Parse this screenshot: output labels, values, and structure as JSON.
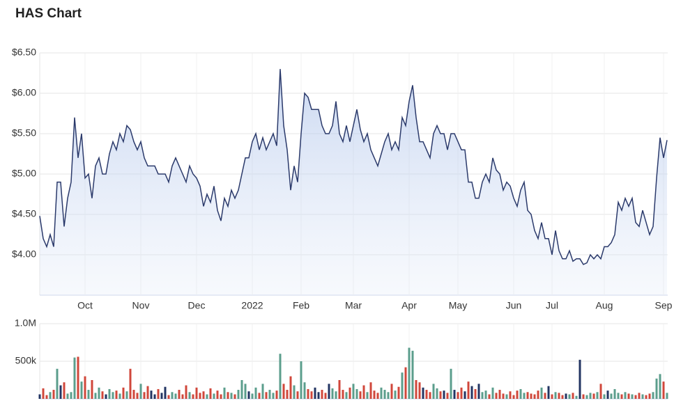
{
  "chart_data": {
    "type": "stock",
    "title": "HAS Chart",
    "price": {
      "color": "#2b3a6b",
      "values": [
        4.48,
        4.2,
        4.1,
        4.25,
        4.1,
        4.9,
        4.9,
        4.35,
        4.7,
        4.9,
        5.7,
        5.2,
        5.5,
        4.95,
        5.0,
        4.7,
        5.1,
        5.2,
        5.0,
        5.0,
        5.25,
        5.4,
        5.3,
        5.5,
        5.4,
        5.6,
        5.55,
        5.4,
        5.3,
        5.4,
        5.2,
        5.1,
        5.1,
        5.1,
        5.0,
        5.0,
        5.0,
        4.9,
        5.1,
        5.2,
        5.1,
        5.0,
        4.9,
        5.1,
        5.0,
        4.95,
        4.85,
        4.6,
        4.75,
        4.65,
        4.85,
        4.55,
        4.42,
        4.7,
        4.6,
        4.8,
        4.7,
        4.8,
        5.0,
        5.2,
        5.2,
        5.4,
        5.5,
        5.3,
        5.45,
        5.3,
        5.4,
        5.5,
        5.35,
        6.3,
        5.6,
        5.3,
        4.8,
        5.1,
        4.9,
        5.5,
        6.0,
        5.95,
        5.8,
        5.8,
        5.8,
        5.6,
        5.5,
        5.5,
        5.6,
        5.9,
        5.5,
        5.4,
        5.6,
        5.4,
        5.6,
        5.8,
        5.55,
        5.4,
        5.5,
        5.3,
        5.2,
        5.1,
        5.25,
        5.4,
        5.5,
        5.3,
        5.4,
        5.3,
        5.7,
        5.6,
        5.9,
        6.1,
        5.7,
        5.4,
        5.4,
        5.3,
        5.2,
        5.5,
        5.6,
        5.5,
        5.5,
        5.3,
        5.5,
        5.5,
        5.4,
        5.3,
        5.3,
        4.9,
        4.9,
        4.7,
        4.7,
        4.9,
        5.0,
        4.9,
        5.2,
        5.05,
        5.0,
        4.8,
        4.9,
        4.85,
        4.7,
        4.6,
        4.8,
        4.9,
        4.55,
        4.5,
        4.3,
        4.2,
        4.4,
        4.2,
        4.2,
        4.0,
        4.3,
        4.05,
        3.95,
        3.95,
        4.05,
        3.92,
        3.95,
        3.95,
        3.88,
        3.9,
        4.0,
        3.95,
        4.0,
        3.95,
        4.1,
        4.1,
        4.15,
        4.25,
        4.65,
        4.55,
        4.7,
        4.6,
        4.7,
        4.4,
        4.35,
        4.55,
        4.4,
        4.25,
        4.35,
        4.95,
        5.45,
        5.2,
        5.42
      ],
      "ylim": [
        3.5,
        6.5
      ],
      "yticks": [
        {
          "value": 4.0,
          "label": "$4.00"
        },
        {
          "value": 4.5,
          "label": "$4.50"
        },
        {
          "value": 5.0,
          "label": "$5.00"
        },
        {
          "value": 5.5,
          "label": "$5.50"
        },
        {
          "value": 6.0,
          "label": "$6.00"
        },
        {
          "value": 6.5,
          "label": "$6.50"
        }
      ]
    },
    "volume": {
      "up_color": "#5b9e8c",
      "down_color": "#d0473b",
      "flat_color": "#233563",
      "values": [
        60000,
        140000,
        50000,
        90000,
        120000,
        400000,
        180000,
        220000,
        70000,
        90000,
        550000,
        560000,
        230000,
        300000,
        120000,
        250000,
        80000,
        150000,
        100000,
        60000,
        130000,
        90000,
        110000,
        70000,
        150000,
        100000,
        400000,
        120000,
        80000,
        200000,
        90000,
        170000,
        110000,
        60000,
        130000,
        80000,
        160000,
        50000,
        90000,
        70000,
        120000,
        60000,
        180000,
        90000,
        60000,
        150000,
        80000,
        100000,
        60000,
        140000,
        70000,
        110000,
        60000,
        150000,
        90000,
        80000,
        60000,
        120000,
        250000,
        200000,
        100000,
        70000,
        150000,
        80000,
        200000,
        90000,
        120000,
        80000,
        110000,
        600000,
        200000,
        120000,
        300000,
        180000,
        100000,
        500000,
        220000,
        130000,
        100000,
        150000,
        90000,
        120000,
        80000,
        200000,
        140000,
        100000,
        250000,
        120000,
        90000,
        150000,
        200000,
        130000,
        100000,
        180000,
        90000,
        220000,
        110000,
        80000,
        150000,
        120000,
        90000,
        200000,
        110000,
        160000,
        350000,
        420000,
        680000,
        640000,
        250000,
        220000,
        150000,
        120000,
        90000,
        200000,
        140000,
        100000,
        110000,
        80000,
        400000,
        120000,
        90000,
        150000,
        100000,
        230000,
        170000,
        130000,
        200000,
        90000,
        110000,
        60000,
        150000,
        80000,
        120000,
        70000,
        60000,
        100000,
        50000,
        110000,
        130000,
        80000,
        90000,
        70000,
        60000,
        110000,
        150000,
        80000,
        170000,
        60000,
        90000,
        80000,
        50000,
        70000,
        60000,
        80000,
        40000,
        520000,
        60000,
        50000,
        80000,
        70000,
        90000,
        200000,
        60000,
        110000,
        70000,
        130000,
        80000,
        60000,
        90000,
        70000,
        60000,
        50000,
        80000,
        60000,
        50000,
        70000,
        90000,
        270000,
        330000,
        230000,
        80000
      ],
      "ylim": [
        0,
        1000000
      ],
      "yticks": [
        {
          "value": 500000,
          "label": "500k"
        },
        {
          "value": 1000000,
          "label": "1.0M"
        }
      ]
    },
    "xlim": [
      0,
      180.2
    ],
    "xticks": [
      {
        "value": 13,
        "label": "Oct"
      },
      {
        "value": 29,
        "label": "Nov"
      },
      {
        "value": 45,
        "label": "Dec"
      },
      {
        "value": 61,
        "label": "2022"
      },
      {
        "value": 75,
        "label": "Feb"
      },
      {
        "value": 90,
        "label": "Mar"
      },
      {
        "value": 106,
        "label": "Apr"
      },
      {
        "value": 120,
        "label": "May"
      },
      {
        "value": 136,
        "label": "Jun"
      },
      {
        "value": 147,
        "label": "Jul"
      },
      {
        "value": 162,
        "label": "Aug"
      },
      {
        "value": 179,
        "label": "Sep"
      }
    ],
    "grid": true
  }
}
